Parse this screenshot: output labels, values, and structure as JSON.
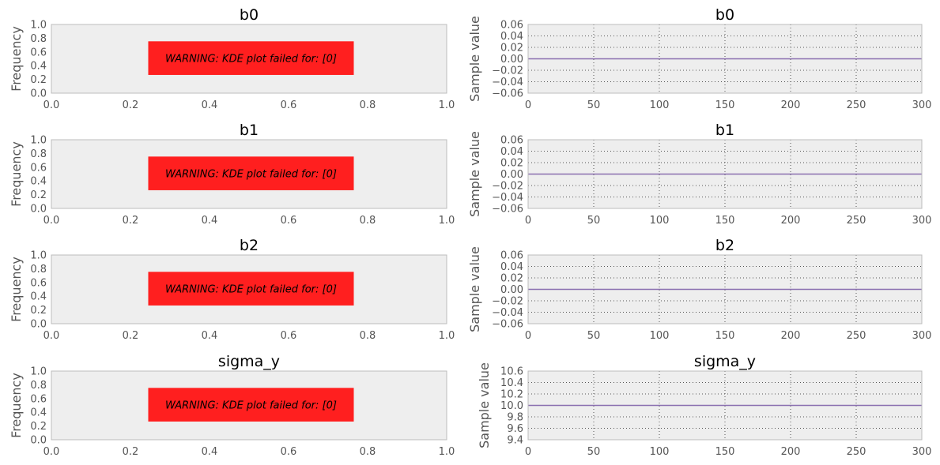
{
  "chart_data": [
    {
      "type": "line",
      "kind": "kde",
      "title": "b0",
      "xlabel": "",
      "ylabel": "Frequency",
      "xlim": [
        0,
        1
      ],
      "ylim": [
        0,
        1
      ],
      "xticks": [
        "0.0",
        "0.2",
        "0.4",
        "0.6",
        "0.8",
        "1.0"
      ],
      "yticks": [
        "0.0",
        "0.2",
        "0.4",
        "0.6",
        "0.8",
        "1.0"
      ],
      "annotation": "WARNING: KDE plot failed for: [0]",
      "annotation_color": "#ff1f1f",
      "grid": false,
      "series": []
    },
    {
      "type": "line",
      "kind": "trace",
      "title": "b0",
      "xlabel": "",
      "ylabel": "Sample value",
      "xlim": [
        0,
        300
      ],
      "ylim": [
        -0.06,
        0.06
      ],
      "xticks": [
        "0",
        "50",
        "100",
        "150",
        "200",
        "250",
        "300"
      ],
      "yticks": [
        "−0.06",
        "−0.04",
        "−0.02",
        "0.00",
        "0.02",
        "0.04",
        "0.06"
      ],
      "grid": true,
      "line_color": "#8a6fb0",
      "series": [
        {
          "x": [
            0,
            300
          ],
          "y": [
            0.0,
            0.0
          ]
        }
      ]
    },
    {
      "type": "line",
      "kind": "kde",
      "title": "b1",
      "xlabel": "",
      "ylabel": "Frequency",
      "xlim": [
        0,
        1
      ],
      "ylim": [
        0,
        1
      ],
      "xticks": [
        "0.0",
        "0.2",
        "0.4",
        "0.6",
        "0.8",
        "1.0"
      ],
      "yticks": [
        "0.0",
        "0.2",
        "0.4",
        "0.6",
        "0.8",
        "1.0"
      ],
      "annotation": "WARNING: KDE plot failed for: [0]",
      "annotation_color": "#ff1f1f",
      "grid": false,
      "series": []
    },
    {
      "type": "line",
      "kind": "trace",
      "title": "b1",
      "xlabel": "",
      "ylabel": "Sample value",
      "xlim": [
        0,
        300
      ],
      "ylim": [
        -0.06,
        0.06
      ],
      "xticks": [
        "0",
        "50",
        "100",
        "150",
        "200",
        "250",
        "300"
      ],
      "yticks": [
        "−0.06",
        "−0.04",
        "−0.02",
        "0.00",
        "0.02",
        "0.04",
        "0.06"
      ],
      "grid": true,
      "line_color": "#8a6fb0",
      "series": [
        {
          "x": [
            0,
            300
          ],
          "y": [
            0.0,
            0.0
          ]
        }
      ]
    },
    {
      "type": "line",
      "kind": "kde",
      "title": "b2",
      "xlabel": "",
      "ylabel": "Frequency",
      "xlim": [
        0,
        1
      ],
      "ylim": [
        0,
        1
      ],
      "xticks": [
        "0.0",
        "0.2",
        "0.4",
        "0.6",
        "0.8",
        "1.0"
      ],
      "yticks": [
        "0.0",
        "0.2",
        "0.4",
        "0.6",
        "0.8",
        "1.0"
      ],
      "annotation": "WARNING: KDE plot failed for: [0]",
      "annotation_color": "#ff1f1f",
      "grid": false,
      "series": []
    },
    {
      "type": "line",
      "kind": "trace",
      "title": "b2",
      "xlabel": "",
      "ylabel": "Sample value",
      "xlim": [
        0,
        300
      ],
      "ylim": [
        -0.06,
        0.06
      ],
      "xticks": [
        "0",
        "50",
        "100",
        "150",
        "200",
        "250",
        "300"
      ],
      "yticks": [
        "−0.06",
        "−0.04",
        "−0.02",
        "0.00",
        "0.02",
        "0.04",
        "0.06"
      ],
      "grid": true,
      "line_color": "#8a6fb0",
      "series": [
        {
          "x": [
            0,
            300
          ],
          "y": [
            0.0,
            0.0
          ]
        }
      ]
    },
    {
      "type": "line",
      "kind": "kde",
      "title": "sigma_y",
      "xlabel": "",
      "ylabel": "Frequency",
      "xlim": [
        0,
        1
      ],
      "ylim": [
        0,
        1
      ],
      "xticks": [
        "0.0",
        "0.2",
        "0.4",
        "0.6",
        "0.8",
        "1.0"
      ],
      "yticks": [
        "0.0",
        "0.2",
        "0.4",
        "0.6",
        "0.8",
        "1.0"
      ],
      "annotation": "WARNING: KDE plot failed for: [0]",
      "annotation_color": "#ff1f1f",
      "grid": false,
      "series": []
    },
    {
      "type": "line",
      "kind": "trace",
      "title": "sigma_y",
      "xlabel": "",
      "ylabel": "Sample value",
      "xlim": [
        0,
        300
      ],
      "ylim": [
        9.4,
        10.6
      ],
      "xticks": [
        "0",
        "50",
        "100",
        "150",
        "200",
        "250",
        "300"
      ],
      "yticks": [
        "9.4",
        "9.6",
        "9.8",
        "10.0",
        "10.2",
        "10.4",
        "10.6"
      ],
      "grid": true,
      "line_color": "#8a6fb0",
      "series": [
        {
          "x": [
            0,
            300
          ],
          "y": [
            10.0,
            10.0
          ]
        }
      ]
    }
  ]
}
